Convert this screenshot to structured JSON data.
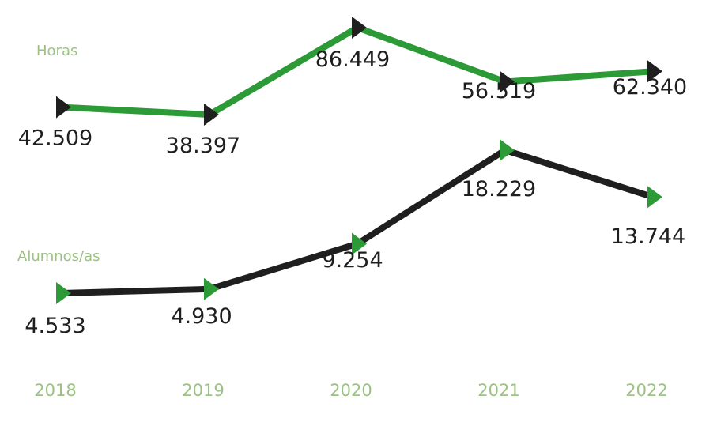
{
  "chart_data": {
    "type": "line",
    "categories": [
      "2018",
      "2019",
      "2020",
      "2021",
      "2022"
    ],
    "series": [
      {
        "name": "Horas",
        "values": [
          42509,
          38397,
          86449,
          56519,
          62340
        ],
        "labels": [
          "42.509",
          "38.397",
          "86.449",
          "56.519",
          "62.340"
        ],
        "line_color": "#2c9a36",
        "marker_color": "#1f1f1f"
      },
      {
        "name": "Alumnos/as",
        "values": [
          4533,
          4930,
          9254,
          18229,
          13744
        ],
        "labels": [
          "4.533",
          "4.930",
          "9.254",
          "18.229",
          "13.744"
        ],
        "line_color": "#1f1f1f",
        "marker_color": "#2c9a36"
      }
    ],
    "title": "",
    "xlabel": "",
    "ylabel": "",
    "grid": false,
    "legend": "none",
    "marker": "right-pointing-triangle"
  }
}
